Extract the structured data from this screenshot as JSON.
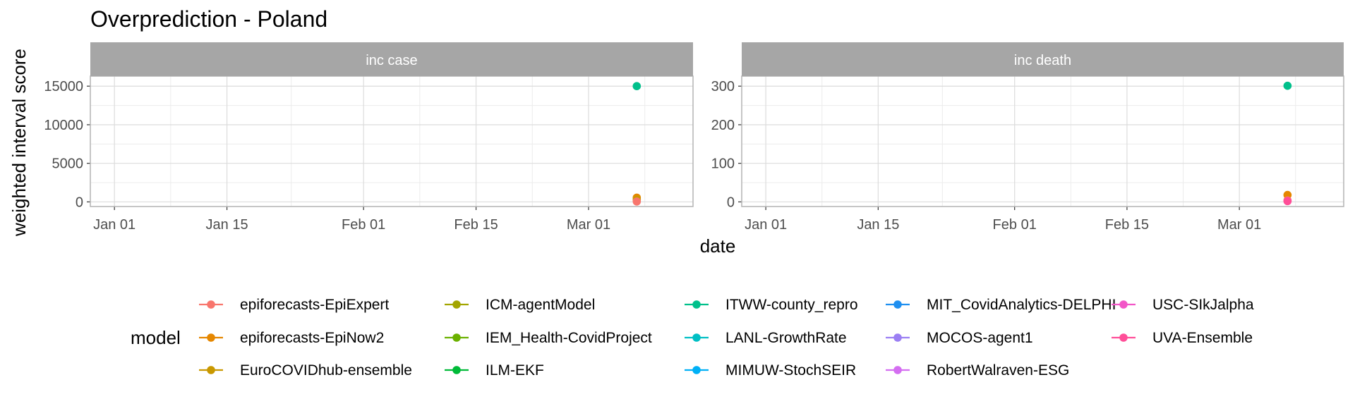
{
  "chart_data": {
    "type": "scatter",
    "title": "Overprediction - Poland",
    "xlabel": "date",
    "ylabel": "weighted interval score",
    "x_ticks": [
      "Jan 01",
      "Jan 15",
      "Feb 01",
      "Feb 15",
      "Mar 01"
    ],
    "x_range": [
      "2021-12-29",
      "2022-03-14"
    ],
    "legend": {
      "title": "model",
      "position": "bottom",
      "entries": [
        {
          "name": "epiforecasts-EpiExpert",
          "color": "#F8766D"
        },
        {
          "name": "epiforecasts-EpiNow2",
          "color": "#E58700"
        },
        {
          "name": "EuroCOVIDhub-ensemble",
          "color": "#C99800"
        },
        {
          "name": "ICM-agentModel",
          "color": "#A3A500"
        },
        {
          "name": "IEM_Health-CovidProject",
          "color": "#6BB100"
        },
        {
          "name": "ILM-EKF",
          "color": "#00BA38"
        },
        {
          "name": "ITWW-county_repro",
          "color": "#00C08B"
        },
        {
          "name": "LANL-GrowthRate",
          "color": "#00BFC4"
        },
        {
          "name": "MIMUW-StochSEIR",
          "color": "#00B0F6"
        },
        {
          "name": "MIT_CovidAnalytics-DELPHI",
          "color": "#1F8FF0"
        },
        {
          "name": "MOCOS-agent1",
          "color": "#9B7FF3"
        },
        {
          "name": "RobertWalraven-ESG",
          "color": "#D46EF1"
        },
        {
          "name": "USC-SIkJalpha",
          "color": "#F255C7"
        },
        {
          "name": "UVA-Ensemble",
          "color": "#FF4E98"
        }
      ]
    },
    "panels": [
      {
        "label": "inc case",
        "y_ticks": [
          "0",
          "5000",
          "10000",
          "15000"
        ],
        "ylim": [
          -600,
          16300
        ],
        "points": [
          {
            "date": "2022-03-07",
            "value": 15000,
            "model": "ITWW-county_repro"
          },
          {
            "date": "2022-03-07",
            "value": 550,
            "model": "epiforecasts-EpiNow2"
          },
          {
            "date": "2022-03-07",
            "value": 300,
            "model": "EuroCOVIDhub-ensemble"
          },
          {
            "date": "2022-03-07",
            "value": 50,
            "model": "epiforecasts-EpiExpert"
          }
        ]
      },
      {
        "label": "inc death",
        "y_ticks": [
          "0",
          "100",
          "200",
          "300"
        ],
        "ylim": [
          -12,
          326
        ],
        "points": [
          {
            "date": "2022-03-07",
            "value": 301,
            "model": "ITWW-county_repro"
          },
          {
            "date": "2022-03-07",
            "value": 18,
            "model": "epiforecasts-EpiNow2"
          },
          {
            "date": "2022-03-07",
            "value": 4,
            "model": "epiforecasts-EpiExpert"
          },
          {
            "date": "2022-03-07",
            "value": 2,
            "model": "UVA-Ensemble"
          }
        ]
      }
    ],
    "grid": true
  }
}
